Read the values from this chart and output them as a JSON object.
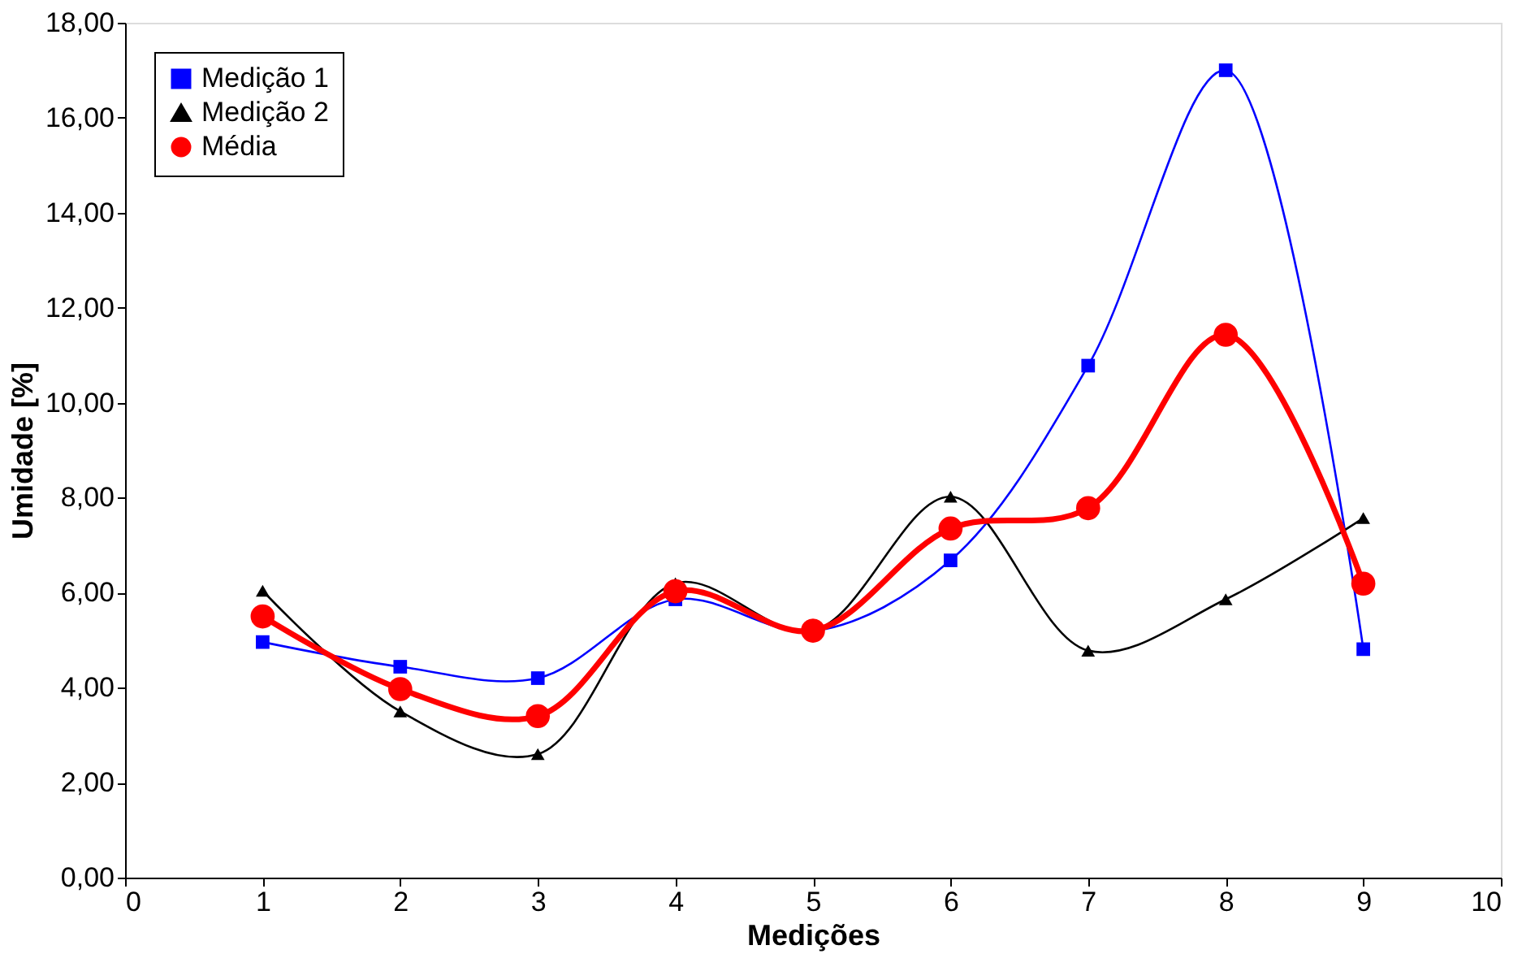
{
  "chart_data": {
    "type": "line",
    "xlabel": "Medições",
    "ylabel": "Umidade [%]",
    "x": [
      1,
      2,
      3,
      4,
      5,
      6,
      7,
      8,
      9
    ],
    "series": [
      {
        "name": "Medição 1",
        "color": "#0000ff",
        "marker": "square",
        "values": [
          4.96,
          4.44,
          4.2,
          5.86,
          5.19,
          6.68,
          10.78,
          17.0,
          4.81
        ]
      },
      {
        "name": "Medição 2",
        "color": "#000000",
        "marker": "triangle",
        "values": [
          6.04,
          3.5,
          2.6,
          6.2,
          5.2,
          8.02,
          4.78,
          5.86,
          7.57
        ]
      },
      {
        "name": "Média",
        "color": "#ff0000",
        "marker": "circle",
        "values": [
          5.5,
          3.97,
          3.4,
          6.03,
          5.2,
          7.35,
          7.78,
          11.43,
          6.19
        ]
      }
    ],
    "xlim": [
      0,
      10
    ],
    "xticks": [
      0,
      1,
      2,
      3,
      4,
      5,
      6,
      7,
      8,
      9,
      10
    ],
    "ylim": [
      0,
      18
    ],
    "yticks": [
      {
        "value": 0,
        "label": "0,00"
      },
      {
        "value": 2,
        "label": "2,00"
      },
      {
        "value": 4,
        "label": "4,00"
      },
      {
        "value": 6,
        "label": "6,00"
      },
      {
        "value": 8,
        "label": "8,00"
      },
      {
        "value": 10,
        "label": "10,00"
      },
      {
        "value": 12,
        "label": "12,00"
      },
      {
        "value": 14,
        "label": "14,00"
      },
      {
        "value": 16,
        "label": "16,00"
      },
      {
        "value": 18,
        "label": "18,00"
      }
    ],
    "grid": false,
    "legend": "top left",
    "line_style": "solid"
  }
}
